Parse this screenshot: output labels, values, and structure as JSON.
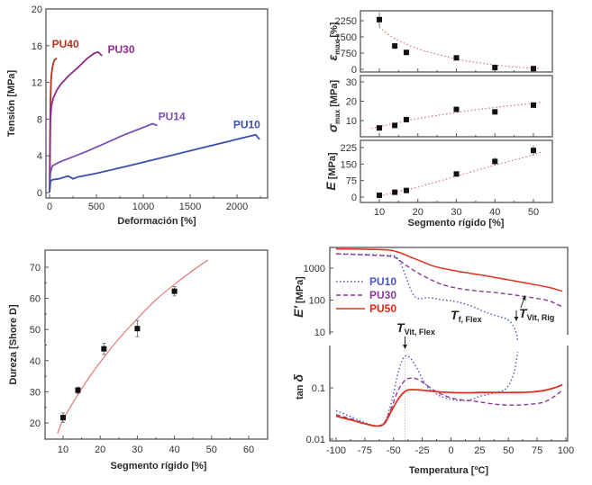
{
  "chart_data": [
    {
      "id": "tensile",
      "type": "line",
      "title": "",
      "xlabel": "Deformación [%]",
      "ylabel": "Tensión [MPa]",
      "xlim": [
        -30,
        2330
      ],
      "ylim": [
        -0.4,
        20
      ],
      "xticks": [
        0,
        500,
        1000,
        1500,
        2000
      ],
      "yticks": [
        0,
        4,
        8,
        12,
        16,
        20
      ],
      "grid": false,
      "series": [
        {
          "name": "PU40",
          "color": "#b5321e",
          "x": [
            0,
            5,
            10,
            15,
            20,
            30,
            40,
            50,
            60,
            70,
            80
          ],
          "y": [
            0,
            6,
            10,
            12,
            12.8,
            13.6,
            14.1,
            14.4,
            14.5,
            14.6,
            14.6
          ]
        },
        {
          "name": "PU30",
          "color": "#8e2c8a",
          "x": [
            0,
            10,
            20,
            40,
            80,
            120,
            200,
            300,
            400,
            480,
            520,
            560
          ],
          "y": [
            0,
            8,
            9.5,
            10.3,
            11.2,
            11.8,
            12.7,
            13.6,
            14.6,
            15.2,
            15.3,
            14.9
          ]
        },
        {
          "name": "PU14",
          "color": "#7a4fb5",
          "x": [
            0,
            10,
            30,
            100,
            200,
            400,
            600,
            800,
            1000,
            1100,
            1150
          ],
          "y": [
            0,
            2.2,
            2.9,
            3.3,
            3.7,
            4.5,
            5.4,
            6.3,
            7.1,
            7.5,
            7.3
          ]
        },
        {
          "name": "PU10",
          "color": "#3a4fb0",
          "x": [
            0,
            10,
            30,
            100,
            200,
            250,
            300,
            500,
            800,
            1200,
            1600,
            2000,
            2200,
            2240
          ],
          "y": [
            0,
            1.2,
            1.4,
            1.5,
            1.8,
            1.5,
            1.7,
            2.1,
            2.8,
            3.8,
            4.8,
            5.8,
            6.3,
            5.8
          ]
        }
      ],
      "annotations": [
        {
          "text": "PU40",
          "x": 25,
          "y": 15.8,
          "color": "#b5321e"
        },
        {
          "text": "PU30",
          "x": 620,
          "y": 15.2,
          "color": "#8e2c8a"
        },
        {
          "text": "PU14",
          "x": 1160,
          "y": 7.9,
          "color": "#7a4fb5"
        },
        {
          "text": "PU10",
          "x": 1960,
          "y": 7.0,
          "color": "#3a4fb0"
        }
      ]
    },
    {
      "id": "mechanical-vs-hard-segment",
      "type": "scatter",
      "xlabel": "Segmento rígido [%]",
      "xlim": [
        5,
        55
      ],
      "xticks": [
        10,
        20,
        30,
        40,
        50
      ],
      "panels": [
        {
          "ylabel": "ε_max [%]",
          "ylabel_main": "ε",
          "ylabel_sub": "max",
          "ylabel_unit": " [%]",
          "ylim": [
            -150,
            2700
          ],
          "yticks": [
            0,
            750,
            1500,
            2250
          ],
          "x": [
            10,
            14,
            17,
            30,
            40,
            50
          ],
          "y": [
            2300,
            1080,
            780,
            530,
            80,
            30
          ],
          "err": [
            350,
            150,
            60,
            60,
            40,
            30
          ],
          "fit_x": [
            10,
            14,
            20,
            25,
            30,
            35,
            40,
            45,
            50,
            52
          ],
          "fit_y": [
            1950,
            1420,
            950,
            700,
            480,
            320,
            200,
            110,
            50,
            30
          ]
        },
        {
          "ylabel": "σ_max [MPa]",
          "ylabel_main": "σ",
          "ylabel_sub": "max",
          "ylabel_unit": " [MPa]",
          "ylim": [
            2,
            32
          ],
          "yticks": [
            10,
            20,
            30
          ],
          "x": [
            10,
            14,
            17,
            30,
            40,
            50
          ],
          "y": [
            6.2,
            7.5,
            10.5,
            15.8,
            14.5,
            18.0
          ],
          "err": [
            1.2,
            0.8,
            0.8,
            1.0,
            0.8,
            1.5
          ],
          "fit_x": [
            8,
            15,
            20,
            30,
            40,
            50,
            52
          ],
          "fit_y": [
            6.0,
            9.0,
            11.0,
            14.2,
            16.8,
            19.0,
            19.5
          ]
        },
        {
          "ylabel": "E [MPa]",
          "ylabel_main": "E",
          "ylabel_sub": "",
          "ylabel_unit": " [MPa]",
          "ylim": [
            -20,
            250
          ],
          "yticks": [
            0,
            75,
            150,
            225
          ],
          "x": [
            10,
            14,
            17,
            30,
            40,
            50
          ],
          "y": [
            8,
            22,
            30,
            105,
            162,
            212
          ],
          "err": [
            5,
            5,
            5,
            8,
            18,
            22
          ],
          "fit_x": [
            10,
            15,
            20,
            30,
            40,
            50,
            52
          ],
          "fit_y": [
            5,
            25,
            45,
            95,
            145,
            192,
            205
          ]
        }
      ],
      "marker_color": "#111111",
      "fit_color": "#e07070"
    },
    {
      "id": "hardness",
      "type": "scatter",
      "xlabel": "Segmento rígido [%]",
      "ylabel": "Dureza [Shore D]",
      "xlim": [
        5,
        65
      ],
      "ylim": [
        15,
        75
      ],
      "xticks": [
        10,
        20,
        30,
        40,
        50,
        60
      ],
      "yticks": [
        20,
        30,
        40,
        50,
        60,
        70
      ],
      "x": [
        10,
        14,
        21,
        30,
        40
      ],
      "y": [
        21.7,
        30.5,
        43.8,
        50.3,
        62.3
      ],
      "err": [
        1.5,
        1.0,
        1.8,
        2.6,
        1.5
      ],
      "fit_x": [
        8.5,
        10,
        15,
        20,
        25,
        30,
        35,
        40,
        45,
        49
      ],
      "fit_y": [
        16.5,
        21,
        31,
        39.5,
        47,
        53.5,
        59.5,
        64.5,
        69,
        72.3
      ],
      "marker_color": "#111111",
      "fit_color": "#e07070"
    },
    {
      "id": "dma",
      "type": "line",
      "xlabel": "Temperatura [ºC]",
      "xlim": [
        -104,
        104
      ],
      "xticks": [
        -100,
        -75,
        -50,
        -25,
        0,
        25,
        50,
        75,
        100
      ],
      "panels": [
        {
          "ylabel": "E' [MPa]",
          "scale": "log",
          "ylim": [
            3.2,
            4500
          ],
          "yticks": [
            10,
            100,
            1000
          ]
        },
        {
          "ylabel": "tan δ",
          "scale": "log",
          "ylim": [
            0.0095,
            0.8
          ],
          "yticks": [
            0.01,
            0.1
          ]
        }
      ],
      "legend": {
        "placement": "top-left",
        "entries": [
          {
            "name": "PU10",
            "color": "#4a55c0",
            "style": "dotted"
          },
          {
            "name": "PU30",
            "color": "#8a3a9a",
            "style": "dashed"
          },
          {
            "name": "PU50",
            "color": "#e03020",
            "style": "solid"
          }
        ]
      },
      "series_storage": [
        {
          "name": "PU10",
          "x": [
            -100,
            -75,
            -55,
            -48,
            -43,
            -38,
            -33,
            -28,
            -20,
            -10,
            0,
            10,
            20,
            30,
            40,
            48,
            52,
            55,
            57,
            58
          ],
          "y": [
            2800,
            2700,
            2500,
            2300,
            1200,
            400,
            150,
            110,
            120,
            105,
            95,
            80,
            60,
            42,
            32,
            26,
            20,
            14,
            9,
            5.5
          ]
        },
        {
          "name": "PU30",
          "x": [
            -100,
            -75,
            -55,
            -48,
            -40,
            -30,
            -20,
            -10,
            0,
            10,
            25,
            40,
            55,
            70,
            85,
            97
          ],
          "y": [
            2800,
            2600,
            2400,
            2100,
            1300,
            750,
            480,
            330,
            260,
            220,
            190,
            170,
            145,
            120,
            95,
            62
          ]
        },
        {
          "name": "PU50",
          "x": [
            -100,
            -75,
            -55,
            -45,
            -35,
            -25,
            -15,
            -5,
            0,
            10,
            25,
            40,
            55,
            70,
            85,
            97
          ],
          "y": [
            4000,
            3900,
            3700,
            3100,
            2200,
            1600,
            1150,
            950,
            880,
            750,
            620,
            500,
            400,
            320,
            250,
            190
          ]
        }
      ],
      "series_tandelta": [
        {
          "name": "PU10",
          "x": [
            -100,
            -85,
            -75,
            -65,
            -58,
            -52,
            -46,
            -42,
            -39,
            -35,
            -30,
            -25,
            -20,
            -15,
            -10,
            -5,
            5,
            15,
            25,
            35,
            45,
            50,
            55,
            57,
            58
          ],
          "y": [
            0.036,
            0.026,
            0.021,
            0.018,
            0.021,
            0.05,
            0.2,
            0.36,
            0.42,
            0.37,
            0.25,
            0.15,
            0.1,
            0.083,
            0.07,
            0.064,
            0.057,
            0.057,
            0.068,
            0.077,
            0.088,
            0.11,
            0.2,
            0.35,
            0.5
          ]
        },
        {
          "name": "PU30",
          "x": [
            -100,
            -85,
            -75,
            -65,
            -58,
            -52,
            -46,
            -40,
            -35,
            -30,
            -25,
            -15,
            -5,
            5,
            20,
            35,
            50,
            65,
            80,
            90,
            97
          ],
          "y": [
            0.03,
            0.024,
            0.02,
            0.018,
            0.021,
            0.04,
            0.09,
            0.14,
            0.155,
            0.15,
            0.13,
            0.09,
            0.07,
            0.06,
            0.055,
            0.049,
            0.046,
            0.047,
            0.052,
            0.068,
            0.09
          ]
        },
        {
          "name": "PU50",
          "x": [
            -100,
            -85,
            -75,
            -65,
            -58,
            -52,
            -46,
            -40,
            -35,
            -25,
            -15,
            -5,
            10,
            25,
            40,
            55,
            70,
            80,
            90,
            97
          ],
          "y": [
            0.028,
            0.023,
            0.02,
            0.018,
            0.02,
            0.035,
            0.06,
            0.085,
            0.092,
            0.09,
            0.085,
            0.082,
            0.08,
            0.081,
            0.081,
            0.081,
            0.083,
            0.088,
            0.1,
            0.115
          ]
        }
      ],
      "annotations": [
        {
          "text": "T",
          "sub": "Vit, Flex",
          "x": -40,
          "panel": "storage",
          "y": 6,
          "arrow_to": "tan-peak"
        },
        {
          "text": "T",
          "sub": "f, Flex",
          "x": 7,
          "panel": "storage",
          "y": 16
        },
        {
          "text": "T",
          "sub": "Vit, Rig",
          "x": 60,
          "panel": "storage",
          "y": 16
        }
      ],
      "reference_line_x": -40
    }
  ]
}
